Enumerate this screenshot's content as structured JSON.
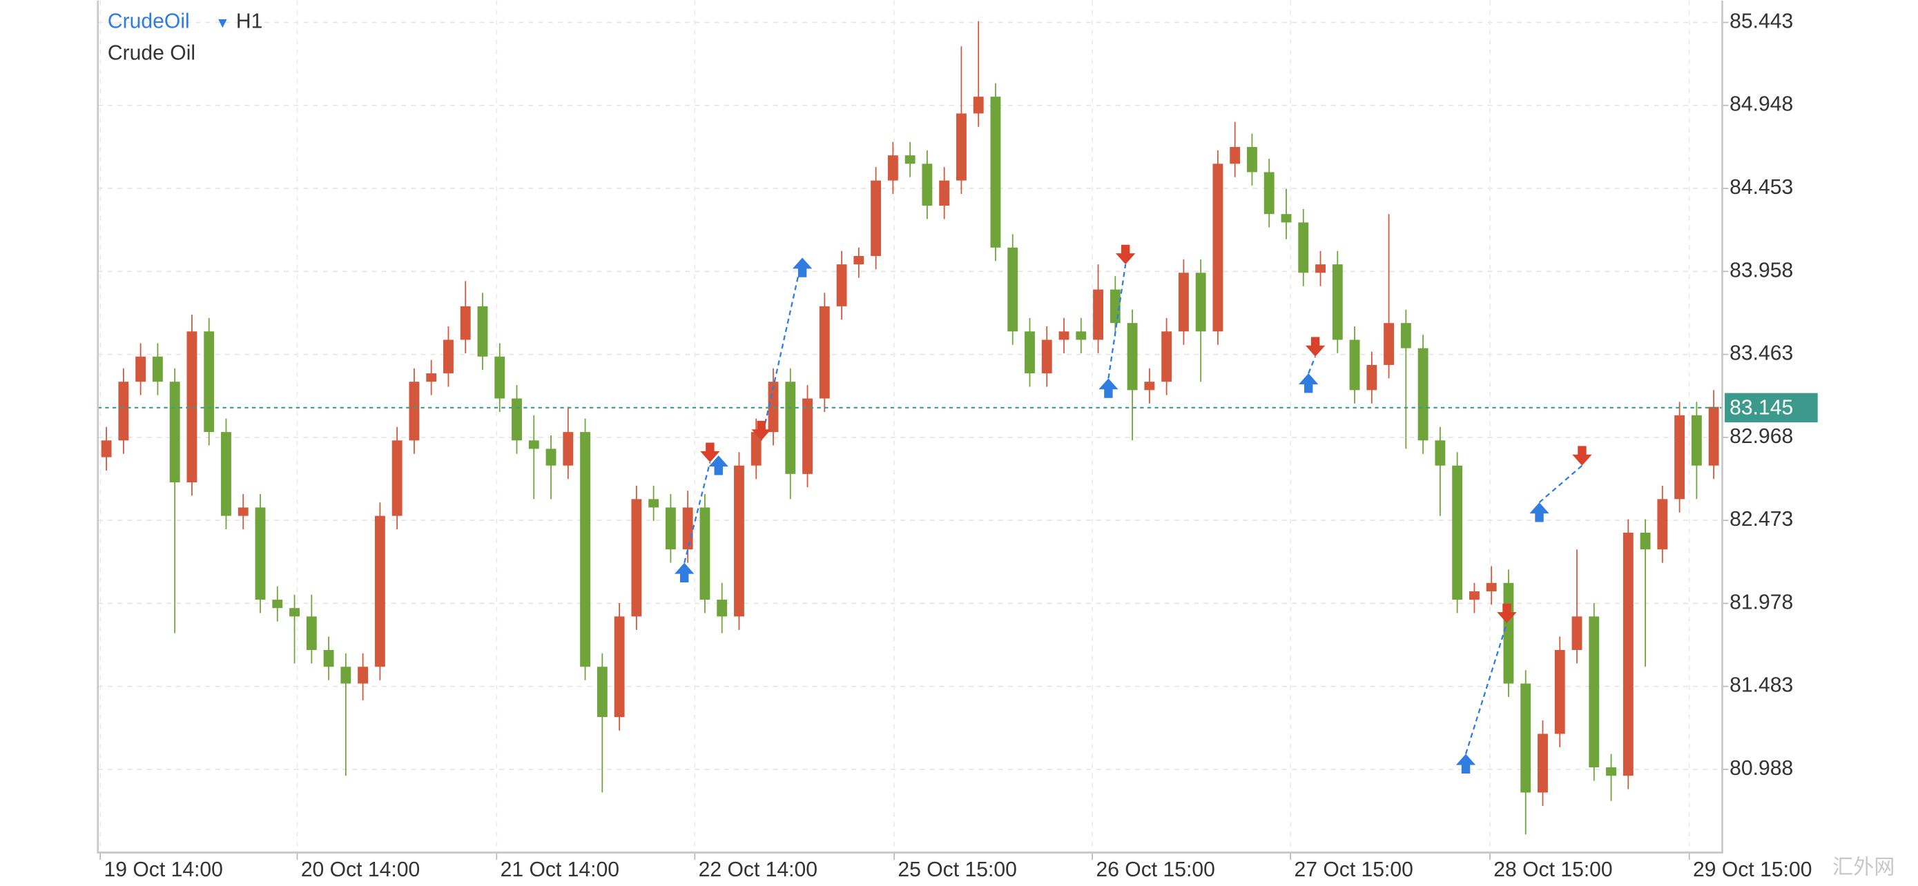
{
  "chart_data": {
    "type": "candlestick",
    "symbol": "CrudeOil",
    "dropdown": "▼",
    "timeframe": "H1",
    "title": "Crude Oil",
    "watermark": "汇外网",
    "up_color": "#d4573b",
    "down_color": "#6ea43a",
    "grid": true,
    "ylim": [
      80.492,
      85.574
    ],
    "yticks": [
      85.443,
      84.948,
      84.453,
      83.958,
      83.463,
      82.968,
      82.473,
      81.978,
      81.483,
      80.988
    ],
    "xlim": [
      0,
      95
    ],
    "xticks": [
      {
        "value": 0.14,
        "label": "19 Oct 14:00"
      },
      {
        "value": 11.66,
        "label": "20 Oct 14:00"
      },
      {
        "value": 23.32,
        "label": "21 Oct 14:00"
      },
      {
        "value": 34.91,
        "label": "22 Oct 14:00"
      },
      {
        "value": 46.57,
        "label": "25 Oct 15:00"
      },
      {
        "value": 58.16,
        "label": "26 Oct 15:00"
      },
      {
        "value": 69.75,
        "label": "27 Oct 15:00"
      },
      {
        "value": 81.41,
        "label": "28 Oct 15:00"
      },
      {
        "value": 93.07,
        "label": "29 Oct 15:00"
      }
    ],
    "last_price": 83.145,
    "last_price_color": "#3c9a8c",
    "buy_color": "#2f7de1",
    "sell_color": "#d9412b",
    "candles": [
      [
        82.85,
        83.03,
        82.77,
        82.95
      ],
      [
        82.95,
        83.38,
        82.87,
        83.3
      ],
      [
        83.3,
        83.53,
        83.22,
        83.45
      ],
      [
        83.45,
        83.53,
        83.22,
        83.3
      ],
      [
        83.3,
        83.38,
        81.8,
        82.7
      ],
      [
        82.7,
        83.7,
        82.62,
        83.6
      ],
      [
        83.6,
        83.68,
        82.92,
        83.0
      ],
      [
        83.0,
        83.08,
        82.42,
        82.5
      ],
      [
        82.5,
        82.63,
        82.42,
        82.55
      ],
      [
        82.55,
        82.63,
        81.92,
        82.0
      ],
      [
        82.0,
        82.08,
        81.87,
        81.95
      ],
      [
        81.95,
        82.03,
        81.62,
        81.9
      ],
      [
        81.9,
        82.03,
        81.62,
        81.7
      ],
      [
        81.7,
        81.78,
        81.52,
        81.6
      ],
      [
        81.6,
        81.68,
        80.95,
        81.5
      ],
      [
        81.5,
        81.68,
        81.4,
        81.6
      ],
      [
        81.6,
        82.58,
        81.52,
        82.5
      ],
      [
        82.5,
        83.03,
        82.42,
        82.95
      ],
      [
        82.95,
        83.38,
        82.87,
        83.3
      ],
      [
        83.3,
        83.43,
        83.22,
        83.35
      ],
      [
        83.35,
        83.63,
        83.27,
        83.55
      ],
      [
        83.55,
        83.9,
        83.47,
        83.75
      ],
      [
        83.75,
        83.83,
        83.37,
        83.45
      ],
      [
        83.45,
        83.53,
        83.12,
        83.2
      ],
      [
        83.2,
        83.28,
        82.87,
        82.95
      ],
      [
        82.95,
        83.1,
        82.6,
        82.9
      ],
      [
        82.9,
        82.98,
        82.6,
        82.8
      ],
      [
        82.8,
        83.15,
        82.72,
        83.0
      ],
      [
        83.0,
        83.08,
        81.52,
        81.6
      ],
      [
        81.6,
        81.68,
        80.85,
        81.3
      ],
      [
        81.3,
        81.98,
        81.22,
        81.9
      ],
      [
        81.9,
        82.68,
        81.82,
        82.6
      ],
      [
        82.6,
        82.68,
        82.47,
        82.55
      ],
      [
        82.55,
        82.63,
        82.22,
        82.3
      ],
      [
        82.3,
        82.65,
        82.22,
        82.55
      ],
      [
        82.55,
        82.63,
        81.92,
        82.0
      ],
      [
        82.0,
        82.1,
        81.8,
        81.9
      ],
      [
        81.9,
        82.88,
        81.82,
        82.8
      ],
      [
        82.8,
        83.08,
        82.72,
        83.0
      ],
      [
        83.0,
        83.38,
        82.92,
        83.3
      ],
      [
        83.3,
        83.38,
        82.6,
        82.75
      ],
      [
        82.75,
        83.28,
        82.67,
        83.2
      ],
      [
        83.2,
        83.83,
        83.12,
        83.75
      ],
      [
        83.75,
        84.08,
        83.67,
        84.0
      ],
      [
        84.0,
        84.1,
        83.92,
        84.05
      ],
      [
        84.05,
        84.58,
        83.97,
        84.5
      ],
      [
        84.5,
        84.73,
        84.42,
        84.65
      ],
      [
        84.65,
        84.73,
        84.52,
        84.6
      ],
      [
        84.6,
        84.68,
        84.27,
        84.35
      ],
      [
        84.35,
        84.58,
        84.27,
        84.5
      ],
      [
        84.5,
        85.3,
        84.42,
        84.9
      ],
      [
        84.9,
        85.45,
        84.82,
        85.0
      ],
      [
        85.0,
        85.08,
        84.02,
        84.1
      ],
      [
        84.1,
        84.18,
        83.52,
        83.6
      ],
      [
        83.6,
        83.68,
        83.27,
        83.35
      ],
      [
        83.35,
        83.63,
        83.27,
        83.55
      ],
      [
        83.55,
        83.68,
        83.47,
        83.6
      ],
      [
        83.6,
        83.68,
        83.47,
        83.55
      ],
      [
        83.55,
        84.0,
        83.47,
        83.85
      ],
      [
        83.85,
        83.93,
        83.57,
        83.65
      ],
      [
        83.65,
        83.73,
        82.95,
        83.25
      ],
      [
        83.25,
        83.38,
        83.17,
        83.3
      ],
      [
        83.3,
        83.68,
        83.22,
        83.6
      ],
      [
        83.6,
        84.03,
        83.52,
        83.95
      ],
      [
        83.95,
        84.03,
        83.3,
        83.6
      ],
      [
        83.6,
        84.68,
        83.52,
        84.6
      ],
      [
        84.6,
        84.85,
        84.52,
        84.7
      ],
      [
        84.7,
        84.78,
        84.47,
        84.55
      ],
      [
        84.55,
        84.63,
        84.22,
        84.3
      ],
      [
        84.3,
        84.45,
        84.15,
        84.25
      ],
      [
        84.25,
        84.33,
        83.87,
        83.95
      ],
      [
        83.95,
        84.08,
        83.87,
        84.0
      ],
      [
        84.0,
        84.08,
        83.47,
        83.55
      ],
      [
        83.55,
        83.63,
        83.17,
        83.25
      ],
      [
        83.25,
        83.48,
        83.17,
        83.4
      ],
      [
        83.4,
        84.3,
        83.32,
        83.65
      ],
      [
        83.65,
        83.73,
        82.9,
        83.5
      ],
      [
        83.5,
        83.58,
        82.87,
        82.95
      ],
      [
        82.95,
        83.03,
        82.5,
        82.8
      ],
      [
        82.8,
        82.88,
        81.92,
        82.0
      ],
      [
        82.0,
        82.1,
        81.92,
        82.05
      ],
      [
        82.05,
        82.2,
        81.97,
        82.1
      ],
      [
        82.1,
        82.18,
        81.42,
        81.5
      ],
      [
        81.5,
        81.58,
        80.6,
        80.85
      ],
      [
        80.85,
        81.28,
        80.77,
        81.2
      ],
      [
        81.2,
        81.78,
        81.12,
        81.7
      ],
      [
        81.7,
        82.3,
        81.62,
        81.9
      ],
      [
        81.9,
        81.98,
        80.92,
        81.0
      ],
      [
        81.0,
        81.08,
        80.8,
        80.95
      ],
      [
        80.95,
        82.48,
        80.87,
        82.4
      ],
      [
        82.4,
        82.48,
        81.6,
        82.3
      ],
      [
        82.3,
        82.68,
        82.22,
        82.6
      ],
      [
        82.6,
        83.18,
        82.52,
        83.1
      ],
      [
        83.1,
        83.18,
        82.6,
        82.8
      ],
      [
        82.8,
        83.25,
        82.72,
        83.15
      ]
    ],
    "trades": [
      {
        "entry": {
          "dir": "buy",
          "x": 34.3,
          "price": 82.22
        },
        "exit": {
          "dir": "sell",
          "x": 35.8,
          "price": 82.82
        }
      },
      {
        "entry": {
          "dir": "sell",
          "x": 38.8,
          "price": 82.95
        },
        "exit": {
          "dir": "buy",
          "x": 41.2,
          "price": 84.04
        }
      },
      {
        "entry": {
          "dir": "buy",
          "x": 59.1,
          "price": 83.32
        },
        "exit": {
          "dir": "sell",
          "x": 60.1,
          "price": 84.0
        }
      },
      {
        "entry": {
          "dir": "buy",
          "x": 70.8,
          "price": 83.35
        },
        "exit": {
          "dir": "sell",
          "x": 71.2,
          "price": 83.45
        }
      },
      {
        "entry": {
          "dir": "buy",
          "x": 80.0,
          "price": 81.08
        },
        "exit": {
          "dir": "sell",
          "x": 82.4,
          "price": 81.86
        }
      },
      {
        "entry": {
          "dir": "buy",
          "x": 84.3,
          "price": 82.58
        },
        "exit": {
          "dir": "sell",
          "x": 86.8,
          "price": 82.8
        }
      }
    ],
    "signals": [
      {
        "dir": "buy",
        "x": 36.3,
        "price": 82.86
      }
    ]
  }
}
